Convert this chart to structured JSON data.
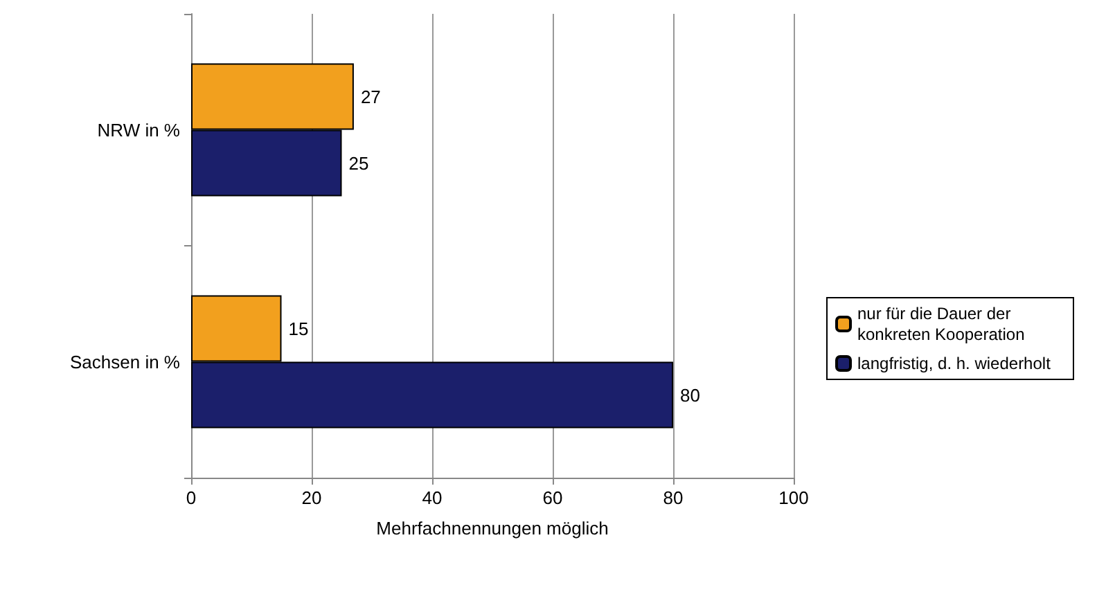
{
  "chart_data": {
    "type": "bar",
    "orientation": "horizontal",
    "categories": [
      "NRW in %",
      "Sachsen in %"
    ],
    "series": [
      {
        "name": "nur für die Dauer der konkreten Kooperation",
        "color": "#f2a01e",
        "values": [
          27,
          15
        ]
      },
      {
        "name": "langfristig, d. h. wiederholt",
        "color": "#1b1f6b",
        "values": [
          25,
          80
        ]
      }
    ],
    "xlabel": "Mehrfachnennungen möglich",
    "xlim": [
      0,
      100
    ],
    "xticks": [
      0,
      20,
      40,
      60,
      80,
      100
    ],
    "grid": "x",
    "legend": "right",
    "data_labels": true
  }
}
